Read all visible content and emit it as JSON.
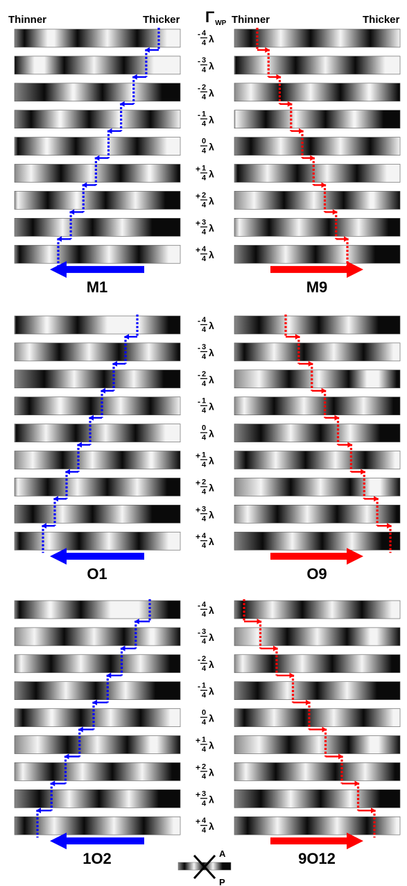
{
  "header": {
    "left_thinner": "Thinner",
    "left_thicker": "Thicker",
    "gamma_symbol": "Γ",
    "gamma_subscript": "WP",
    "right_thinner": "Thinner",
    "right_thicker": "Thicker"
  },
  "fractions": [
    {
      "sign": "-",
      "num": "4",
      "den": "4",
      "unit": "λ"
    },
    {
      "sign": "-",
      "num": "3",
      "den": "4",
      "unit": "λ"
    },
    {
      "sign": "-",
      "num": "2",
      "den": "4",
      "unit": "λ"
    },
    {
      "sign": "-",
      "num": "1",
      "den": "4",
      "unit": "λ"
    },
    {
      "sign": "",
      "num": "0",
      "den": "4",
      "unit": "λ"
    },
    {
      "sign": "+",
      "num": "1",
      "den": "4",
      "unit": "λ"
    },
    {
      "sign": "+",
      "num": "2",
      "den": "4",
      "unit": "λ"
    },
    {
      "sign": "+",
      "num": "3",
      "den": "4",
      "unit": "λ"
    },
    {
      "sign": "+",
      "num": "4",
      "den": "4",
      "unit": "λ"
    }
  ],
  "groups": [
    {
      "left_label": "M1",
      "right_label": "M9",
      "left_color": "#0000ff",
      "right_color": "#ff0000"
    },
    {
      "left_label": "O1",
      "right_label": "O9",
      "left_color": "#0000ff",
      "right_color": "#ff0000"
    },
    {
      "left_label": "1O2",
      "right_label": "9O12",
      "left_color": "#0000ff",
      "right_color": "#ff0000"
    }
  ],
  "polarizer": {
    "analyzer_label": "A",
    "polarizer_label": "P"
  }
}
